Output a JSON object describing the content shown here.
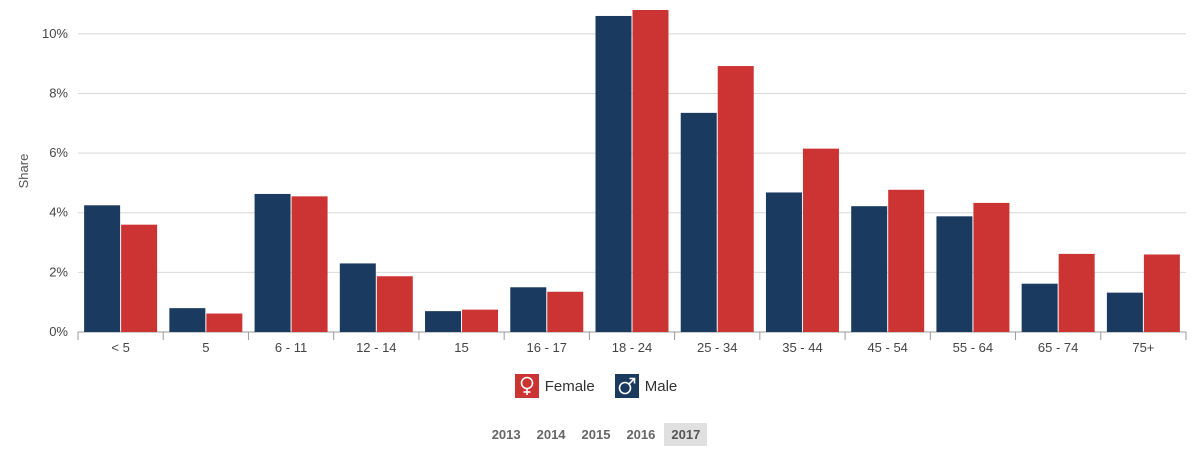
{
  "chart_data": {
    "type": "bar",
    "ylabel": "Share",
    "ylim": [
      0,
      10.8
    ],
    "yticks": [
      "0%",
      "2%",
      "4%",
      "6%",
      "8%",
      "10%"
    ],
    "ytick_values": [
      0,
      2,
      4,
      6,
      8,
      10
    ],
    "categories": [
      "< 5",
      "5",
      "6 - 11",
      "12 - 14",
      "15",
      "16 - 17",
      "18 - 24",
      "25 - 34",
      "35 - 44",
      "45 - 54",
      "55 - 64",
      "65 - 74",
      "75+"
    ],
    "series": [
      {
        "name": "Male",
        "color": "#1b3a5f",
        "values": [
          4.25,
          0.8,
          4.63,
          2.3,
          0.7,
          1.5,
          10.6,
          7.35,
          4.68,
          4.22,
          3.88,
          1.62,
          1.32
        ]
      },
      {
        "name": "Female",
        "color": "#cc3333",
        "values": [
          3.6,
          0.62,
          4.55,
          1.87,
          0.75,
          1.35,
          10.8,
          8.92,
          6.15,
          4.77,
          4.33,
          2.62,
          2.6
        ]
      }
    ],
    "grid": true
  },
  "legend": [
    {
      "label": "Female",
      "icon": "female-symbol-icon",
      "color": "#cc3333"
    },
    {
      "label": "Male",
      "icon": "male-symbol-icon",
      "color": "#1b3a5f"
    }
  ],
  "years": [
    "2013",
    "2014",
    "2015",
    "2016",
    "2017"
  ],
  "selected_year": "2017"
}
